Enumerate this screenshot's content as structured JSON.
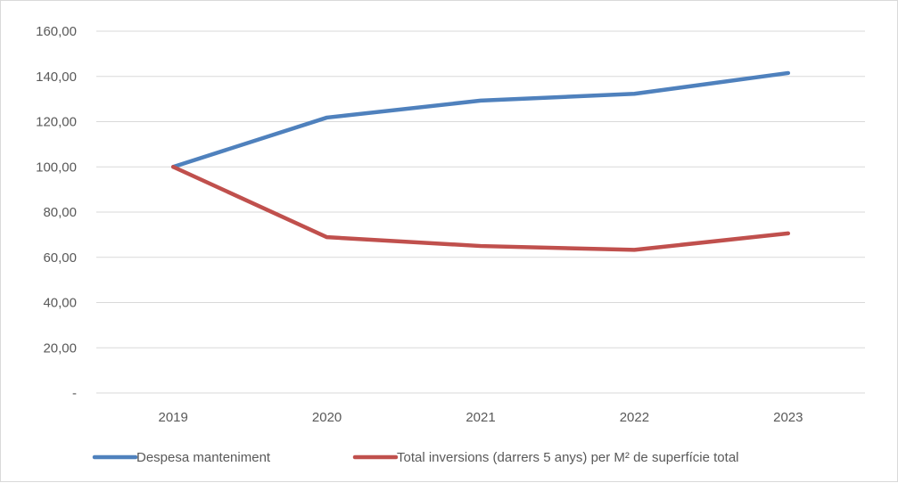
{
  "chart_data": {
    "type": "line",
    "categories": [
      "2019",
      "2020",
      "2021",
      "2022",
      "2023"
    ],
    "series": [
      {
        "name": "Despesa manteniment",
        "color": "#4f81bd",
        "values": [
          100.0,
          121.8,
          129.3,
          132.3,
          141.5
        ]
      },
      {
        "name": "Total inversions (darrers 5 anys) per M² de superfície total",
        "color": "#c0504d",
        "values": [
          100.0,
          68.9,
          65.0,
          63.3,
          70.6
        ]
      }
    ],
    "ylim": [
      0,
      160
    ],
    "yticks": [
      {
        "value": 0,
        "label": "-"
      },
      {
        "value": 20,
        "label": "20,00"
      },
      {
        "value": 40,
        "label": "40,00"
      },
      {
        "value": 60,
        "label": "60,00"
      },
      {
        "value": 80,
        "label": "80,00"
      },
      {
        "value": 100,
        "label": "100,00"
      },
      {
        "value": 120,
        "label": "120,00"
      },
      {
        "value": 140,
        "label": "140,00"
      },
      {
        "value": 160,
        "label": "160,00"
      }
    ],
    "grid": true,
    "gridColor": "#d9d9d9",
    "legend": "bottom"
  }
}
